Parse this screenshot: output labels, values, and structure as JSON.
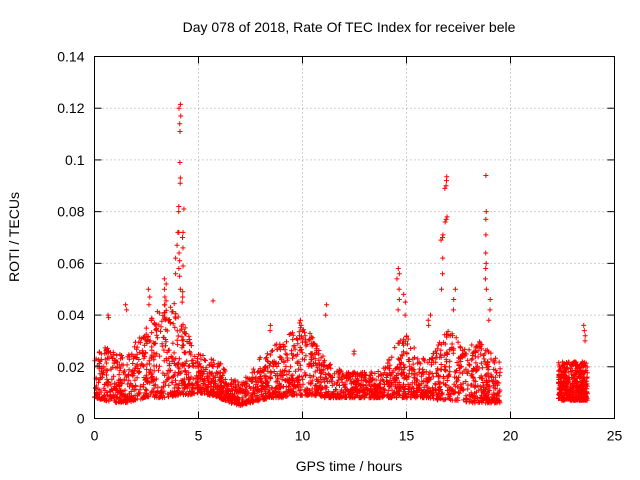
{
  "chart_data": {
    "type": "scatter",
    "title": "Day 078 of 2018, Rate Of TEC Index for receiver bele",
    "xlabel": "GPS time / hours",
    "ylabel": "ROTI / TECUs",
    "xlim": [
      0,
      25
    ],
    "ylim": [
      0,
      0.14
    ],
    "xticks": [
      0,
      5,
      10,
      15,
      20,
      25
    ],
    "xtick_labels": [
      "0",
      "5",
      "10",
      "15",
      "20",
      "25"
    ],
    "yticks": [
      0,
      0.02,
      0.04,
      0.06,
      0.08,
      0.1,
      0.12,
      0.14
    ],
    "ytick_labels": [
      "0",
      "0.02",
      "0.04",
      "0.06",
      "0.08",
      "0.1",
      "0.12",
      "0.14"
    ],
    "grid": true,
    "marker": "+",
    "marker_color": "#ff0000",
    "envelope": {
      "description": "Typical ROTI band vs GPS time (data units); dense scatter of ~1 point per 15 s of each satellite",
      "x": [
        0.0,
        0.5,
        1.0,
        1.5,
        2.0,
        2.5,
        3.0,
        3.5,
        4.0,
        4.5,
        5.0,
        5.5,
        6.0,
        6.5,
        7.0,
        7.5,
        8.0,
        8.5,
        9.0,
        9.5,
        10.0,
        10.5,
        11.0,
        11.5,
        12.0,
        12.5,
        13.0,
        13.5,
        14.0,
        14.5,
        15.0,
        15.5,
        16.0,
        16.5,
        17.0,
        17.5,
        18.0,
        18.5,
        19.0,
        19.5
      ],
      "low": [
        0.008,
        0.007,
        0.006,
        0.006,
        0.007,
        0.008,
        0.008,
        0.008,
        0.009,
        0.009,
        0.01,
        0.009,
        0.008,
        0.006,
        0.005,
        0.006,
        0.007,
        0.008,
        0.008,
        0.009,
        0.009,
        0.009,
        0.008,
        0.008,
        0.008,
        0.008,
        0.008,
        0.008,
        0.008,
        0.008,
        0.008,
        0.008,
        0.008,
        0.007,
        0.007,
        0.007,
        0.006,
        0.006,
        0.006,
        0.006
      ],
      "high": [
        0.024,
        0.028,
        0.025,
        0.026,
        0.03,
        0.036,
        0.042,
        0.046,
        0.044,
        0.034,
        0.025,
        0.024,
        0.022,
        0.016,
        0.014,
        0.018,
        0.024,
        0.028,
        0.03,
        0.034,
        0.036,
        0.032,
        0.024,
        0.02,
        0.018,
        0.018,
        0.018,
        0.018,
        0.02,
        0.03,
        0.032,
        0.026,
        0.022,
        0.028,
        0.036,
        0.03,
        0.028,
        0.03,
        0.026,
        0.022
      ]
    },
    "late_segment": {
      "x_start": 22.3,
      "x_end": 23.7,
      "low": 0.007,
      "high": 0.022
    },
    "gap": [
      19.5,
      22.3
    ],
    "spikes": [
      {
        "x": 4.1,
        "values": [
          0.1215,
          0.12,
          0.117,
          0.114,
          0.111,
          0.099,
          0.093,
          0.091,
          0.082,
          0.08,
          0.072,
          0.064,
          0.061,
          0.058,
          0.055,
          0.05
        ]
      },
      {
        "x": 4.25,
        "values": [
          0.081,
          0.072,
          0.07,
          0.066,
          0.059,
          0.049,
          0.047,
          0.045
        ]
      },
      {
        "x": 3.95,
        "values": [
          0.072,
          0.067,
          0.062,
          0.056
        ]
      },
      {
        "x": 3.4,
        "values": [
          0.054,
          0.052,
          0.05,
          0.047
        ]
      },
      {
        "x": 2.65,
        "values": [
          0.05,
          0.047,
          0.044
        ]
      },
      {
        "x": 5.7,
        "values": [
          0.0455
        ]
      },
      {
        "x": 0.7,
        "values": [
          0.04,
          0.039
        ]
      },
      {
        "x": 1.55,
        "values": [
          0.044,
          0.042
        ]
      },
      {
        "x": 8.4,
        "values": [
          0.036,
          0.034
        ]
      },
      {
        "x": 9.9,
        "values": [
          0.038,
          0.037,
          0.036
        ]
      },
      {
        "x": 11.1,
        "values": [
          0.044,
          0.04
        ]
      },
      {
        "x": 12.5,
        "values": [
          0.026,
          0.025
        ]
      },
      {
        "x": 14.6,
        "values": [
          0.058,
          0.056,
          0.054,
          0.05,
          0.046,
          0.042
        ]
      },
      {
        "x": 14.9,
        "values": [
          0.048,
          0.045,
          0.04
        ]
      },
      {
        "x": 16.1,
        "values": [
          0.04,
          0.038,
          0.036
        ]
      },
      {
        "x": 16.9,
        "values": [
          0.0935,
          0.092,
          0.09,
          0.089,
          0.078,
          0.077,
          0.076
        ]
      },
      {
        "x": 16.7,
        "values": [
          0.071,
          0.07,
          0.069,
          0.062,
          0.056,
          0.05
        ]
      },
      {
        "x": 17.3,
        "values": [
          0.05,
          0.046,
          0.042
        ]
      },
      {
        "x": 18.8,
        "values": [
          0.094,
          0.08,
          0.077,
          0.071,
          0.064,
          0.06,
          0.058,
          0.054,
          0.05
        ]
      },
      {
        "x": 19.0,
        "values": [
          0.046,
          0.042,
          0.038
        ]
      },
      {
        "x": 23.55,
        "values": [
          0.036,
          0.034,
          0.032,
          0.03
        ]
      }
    ]
  }
}
